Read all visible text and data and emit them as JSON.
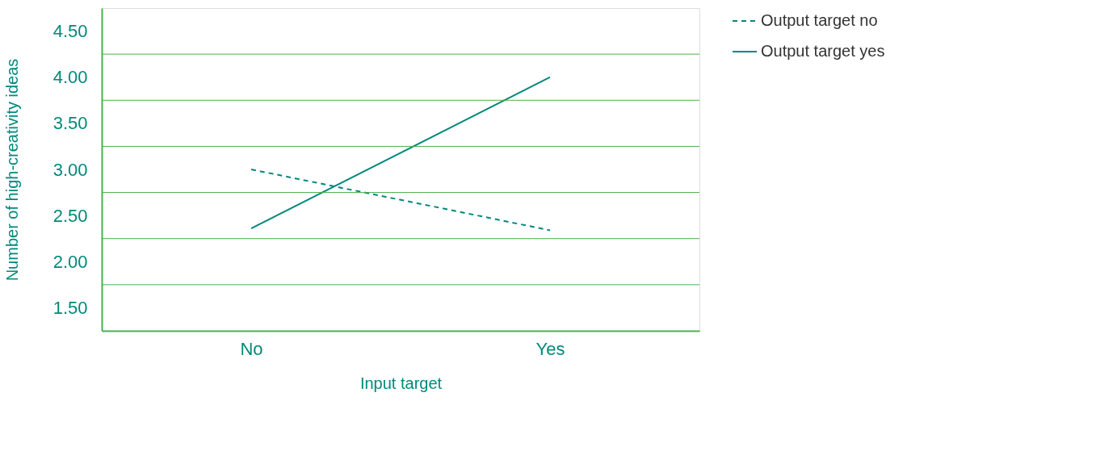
{
  "chart_data": {
    "type": "line",
    "xlabel": "Input target",
    "ylabel": "Number of high-creativity ideas",
    "categories": [
      "No",
      "Yes"
    ],
    "series": [
      {
        "name": "Output target no",
        "color": "#00897b",
        "values": [
          3.0,
          2.34
        ],
        "line_style": "dashed"
      },
      {
        "name": "Output target yes",
        "color": "#00897b",
        "values": [
          2.36,
          4.0
        ],
        "line_style": "solid"
      }
    ],
    "ylim": [
      1.25,
      4.75
    ],
    "yticks": [
      {
        "value": 1.5,
        "label": "1.50"
      },
      {
        "value": 1.75,
        "label": null
      },
      {
        "value": 2.0,
        "label": "2.00"
      },
      {
        "value": 2.25,
        "label": null
      },
      {
        "value": 2.5,
        "label": "2.50"
      },
      {
        "value": 2.75,
        "label": null
      },
      {
        "value": 3.0,
        "label": "3.00"
      },
      {
        "value": 3.25,
        "label": null
      },
      {
        "value": 3.5,
        "label": "3.50"
      },
      {
        "value": 3.75,
        "label": null
      },
      {
        "value": 4.0,
        "label": "4.00"
      },
      {
        "value": 4.25,
        "label": null
      },
      {
        "value": 4.5,
        "label": "4.50"
      }
    ],
    "grid": "y",
    "legend": "top right",
    "marker": "none"
  }
}
